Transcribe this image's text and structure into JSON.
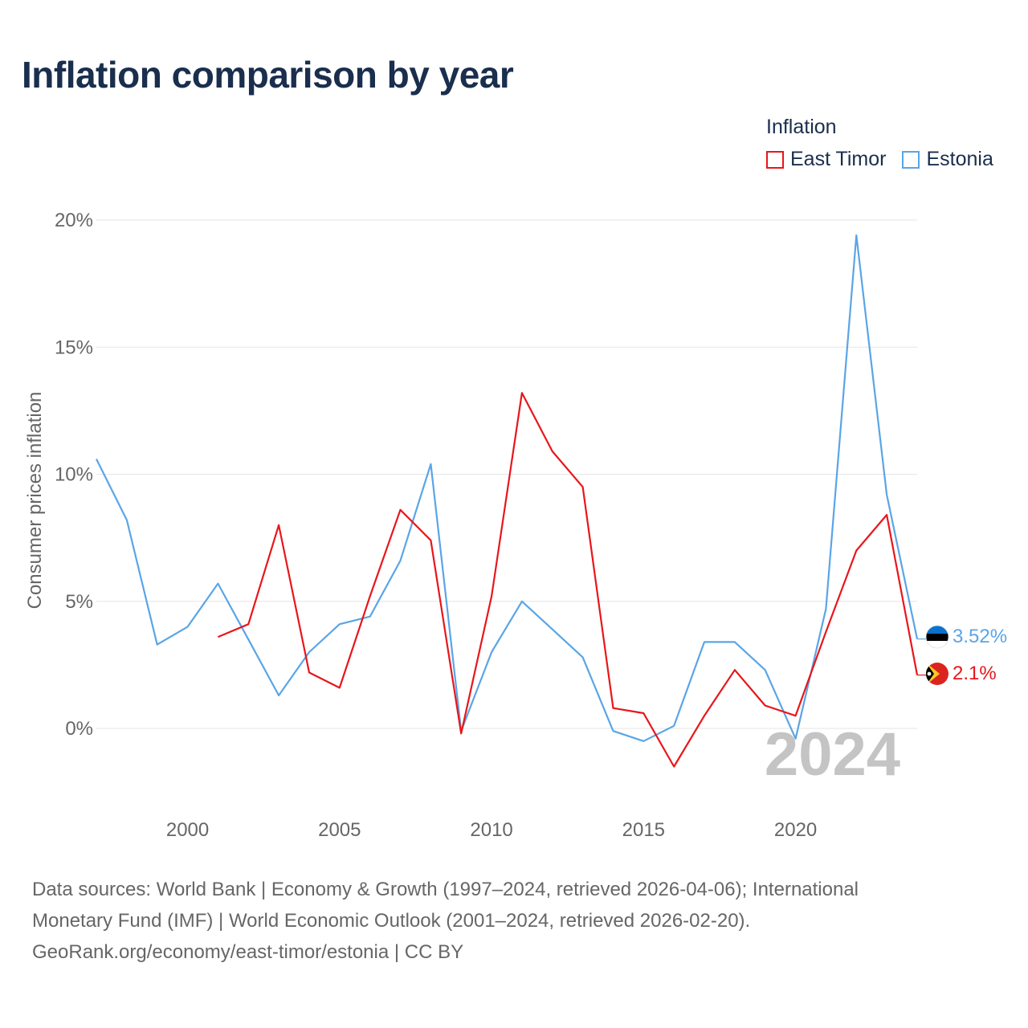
{
  "title": "Inflation comparison by year",
  "legend": {
    "title": "Inflation",
    "items": [
      {
        "label": "East Timor",
        "color": "#e8161b"
      },
      {
        "label": "Estonia",
        "color": "#5aa5e6"
      }
    ]
  },
  "year_overlay": "2024",
  "end_labels": {
    "east_timor": "2.1%",
    "estonia": "3.52%"
  },
  "source": {
    "line1": "Data sources: World Bank | Economy & Growth (1997–2024, retrieved 2026-04-06); International",
    "line2": "Monetary Fund (IMF) | World Economic Outlook (2001–2024, retrieved 2026-02-20).",
    "line3": "GeoRank.org/economy/east-timor/estonia | CC BY"
  },
  "chart_data": {
    "type": "line",
    "title": "Inflation comparison by year",
    "xlabel": "",
    "ylabel": "Consumer prices inflation",
    "xlim": [
      1997,
      2024
    ],
    "ylim": [
      -3,
      20
    ],
    "yticks": [
      {
        "value": 0,
        "label": "0%"
      },
      {
        "value": 5,
        "label": "5%"
      },
      {
        "value": 10,
        "label": "10%"
      },
      {
        "value": 15,
        "label": "15%"
      },
      {
        "value": 20,
        "label": "20%"
      }
    ],
    "xticks": [
      {
        "value": 2000,
        "label": "2000"
      },
      {
        "value": 2005,
        "label": "2005"
      },
      {
        "value": 2010,
        "label": "2010"
      },
      {
        "value": 2015,
        "label": "2015"
      },
      {
        "value": 2020,
        "label": "2020"
      }
    ],
    "series": [
      {
        "name": "Estonia",
        "color": "#5aa5e6",
        "x": [
          1997,
          1998,
          1999,
          2000,
          2001,
          2002,
          2003,
          2004,
          2005,
          2006,
          2007,
          2008,
          2009,
          2010,
          2011,
          2012,
          2013,
          2014,
          2015,
          2016,
          2017,
          2018,
          2019,
          2020,
          2021,
          2022,
          2023,
          2024
        ],
        "values": [
          10.6,
          8.2,
          3.3,
          4.0,
          5.7,
          3.5,
          1.3,
          3.0,
          4.1,
          4.4,
          6.6,
          10.4,
          -0.1,
          3.0,
          5.0,
          3.9,
          2.8,
          -0.1,
          -0.5,
          0.1,
          3.4,
          3.4,
          2.3,
          -0.4,
          4.7,
          19.4,
          9.2,
          3.52
        ]
      },
      {
        "name": "East Timor",
        "color": "#e8161b",
        "x": [
          2001,
          2002,
          2003,
          2004,
          2005,
          2006,
          2007,
          2008,
          2009,
          2010,
          2011,
          2012,
          2013,
          2014,
          2015,
          2016,
          2017,
          2018,
          2019,
          2020,
          2021,
          2022,
          2023,
          2024
        ],
        "values": [
          3.6,
          4.1,
          8.0,
          2.2,
          1.6,
          5.2,
          8.6,
          7.4,
          -0.2,
          5.2,
          13.2,
          10.9,
          9.5,
          0.8,
          0.6,
          -1.5,
          0.5,
          2.3,
          0.9,
          0.5,
          3.8,
          7.0,
          8.4,
          2.1
        ]
      }
    ]
  }
}
